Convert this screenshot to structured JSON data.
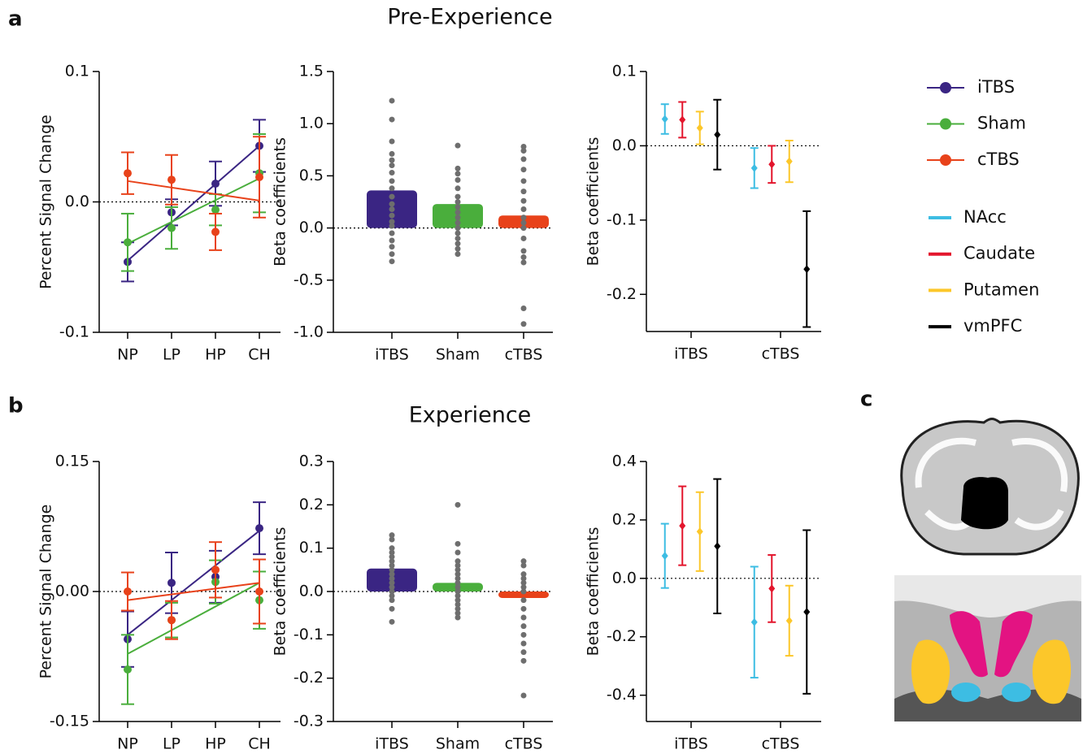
{
  "panels": [
    {
      "label": "a",
      "title": "Pre-Experience"
    },
    {
      "label": "b",
      "title": "Experience"
    },
    {
      "label": "c"
    }
  ],
  "chart_data": [
    {
      "type": "line",
      "ylabel": "Percent  Signal  Change",
      "categories": [
        "NP",
        "LP",
        "HP",
        "CH"
      ],
      "ylim": [
        -0.1,
        0.1
      ],
      "yticks": [
        -0.1,
        {
          "value": 0,
          "label": "0.0"
        },
        0.1
      ],
      "series": [
        {
          "name": "iTBS",
          "color": "#3a2583",
          "values": [
            -0.046,
            -0.008,
            0.014,
            0.043
          ],
          "errors": [
            0.015,
            0.01,
            0.017,
            0.02
          ],
          "fit": [
            -0.045,
            0.043
          ]
        },
        {
          "name": "Sham",
          "color": "#4aae3c",
          "values": [
            -0.031,
            -0.02,
            -0.006,
            0.022
          ],
          "errors": [
            0.022,
            0.016,
            0.012,
            0.03
          ],
          "fit": [
            -0.032,
            0.018
          ]
        },
        {
          "name": "cTBS",
          "color": "#e8421a",
          "values": [
            0.022,
            0.017,
            -0.023,
            0.019
          ],
          "errors": [
            0.016,
            0.019,
            0.014,
            0.031
          ],
          "fit": [
            0.016,
            0.001
          ]
        }
      ]
    },
    {
      "type": "bar",
      "ylabel": "Beta coefficients",
      "categories": [
        "iTBS",
        "Sham",
        "cTBS"
      ],
      "values": [
        0.36,
        0.23,
        0.12
      ],
      "colors": [
        "#3a2583",
        "#4aae3c",
        "#e8421a"
      ],
      "point_color": "#6e6e6e",
      "points": [
        [
          1.22,
          1.04,
          0.83,
          0.71,
          0.65,
          0.6,
          0.53,
          0.45,
          0.38,
          0.3,
          0.23,
          0.18,
          0.12,
          0.06,
          0.02,
          -0.05,
          -0.12,
          -0.18,
          -0.25,
          -0.32
        ],
        [
          0.79,
          0.57,
          0.52,
          0.46,
          0.38,
          0.3,
          0.25,
          0.2,
          0.15,
          0.1,
          0.05,
          0.0,
          -0.05,
          -0.1,
          -0.15,
          -0.2,
          -0.25
        ],
        [
          0.78,
          0.74,
          0.66,
          0.56,
          0.45,
          0.35,
          0.26,
          0.18,
          0.1,
          0.05,
          0.0,
          -0.1,
          -0.22,
          -0.28,
          -0.33,
          -0.77,
          -0.92
        ]
      ],
      "ylim": [
        -1.0,
        1.5
      ],
      "yticks": [
        {
          "value": -1,
          "label": "-1.0"
        },
        -0.5,
        {
          "value": 0,
          "label": "0.0"
        },
        0.5,
        {
          "value": 1,
          "label": "1.0"
        },
        1.5
      ]
    },
    {
      "type": "errorbar",
      "ylabel": "Beta coefficients",
      "categories": [
        "iTBS",
        "cTBS"
      ],
      "ylim": [
        -0.25,
        0.1
      ],
      "yticks": [
        -0.2,
        -0.1,
        {
          "value": 0,
          "label": "0.0"
        },
        0.1
      ],
      "series": [
        {
          "name": "NAcc",
          "color": "#3dbde3",
          "values": [
            0.036,
            -0.03
          ],
          "errors": [
            0.02,
            0.027
          ]
        },
        {
          "name": "Caudate",
          "color": "#e3162d",
          "values": [
            0.035,
            -0.025
          ],
          "errors": [
            0.024,
            0.025
          ]
        },
        {
          "name": "Putamen",
          "color": "#fcc72a",
          "values": [
            0.024,
            -0.021
          ],
          "errors": [
            0.022,
            0.028
          ]
        },
        {
          "name": "vmPFC",
          "color": "#000000",
          "values": [
            0.015,
            -0.166
          ],
          "errors": [
            0.047,
            0.078
          ]
        }
      ]
    },
    {
      "type": "line",
      "ylabel": "Percent  Signal  Change",
      "categories": [
        "NP",
        "LP",
        "HP",
        "CH"
      ],
      "ylim": [
        -0.15,
        0.15
      ],
      "yticks": [
        -0.15,
        {
          "value": 0,
          "label": "0.00"
        },
        0.15
      ],
      "series": [
        {
          "name": "iTBS",
          "color": "#3a2583",
          "values": [
            -0.055,
            0.01,
            0.017,
            0.073
          ],
          "errors": [
            0.032,
            0.035,
            0.03,
            0.03
          ],
          "fit": [
            -0.05,
            0.07
          ]
        },
        {
          "name": "Sham",
          "color": "#4aae3c",
          "values": [
            -0.09,
            -0.033,
            0.011,
            -0.01
          ],
          "errors": [
            0.04,
            0.02,
            0.025,
            0.033
          ],
          "fit": [
            -0.072,
            0.01
          ]
        },
        {
          "name": "cTBS",
          "color": "#e8421a",
          "values": [
            0.0,
            -0.033,
            0.025,
            0.0
          ],
          "errors": [
            0.022,
            0.022,
            0.032,
            0.037
          ],
          "fit": [
            -0.01,
            0.01
          ]
        }
      ]
    },
    {
      "type": "bar",
      "ylabel": "Beta coefficients",
      "categories": [
        "iTBS",
        "Sham",
        "cTBS"
      ],
      "values": [
        0.053,
        0.02,
        -0.015
      ],
      "colors": [
        "#3a2583",
        "#4aae3c",
        "#e8421a"
      ],
      "point_color": "#6e6e6e",
      "points": [
        [
          0.13,
          0.12,
          0.1,
          0.09,
          0.08,
          0.07,
          0.06,
          0.05,
          0.04,
          0.03,
          0.02,
          0.01,
          0.0,
          -0.01,
          -0.02,
          -0.04,
          -0.07
        ],
        [
          0.2,
          0.11,
          0.09,
          0.07,
          0.06,
          0.05,
          0.04,
          0.03,
          0.02,
          0.01,
          0.0,
          -0.01,
          -0.02,
          -0.03,
          -0.04,
          -0.05,
          -0.06
        ],
        [
          0.07,
          0.06,
          0.04,
          0.03,
          0.02,
          0.01,
          0.0,
          -0.02,
          -0.04,
          -0.06,
          -0.08,
          -0.1,
          -0.12,
          -0.14,
          -0.16,
          -0.24
        ]
      ],
      "ylim": [
        -0.3,
        0.3
      ],
      "yticks": [
        -0.3,
        -0.2,
        -0.1,
        {
          "value": 0,
          "label": "0.0"
        },
        0.1,
        0.2,
        0.3
      ]
    },
    {
      "type": "errorbar",
      "ylabel": "Beta coefficients",
      "categories": [
        "iTBS",
        "cTBS"
      ],
      "ylim": [
        -0.49,
        0.4
      ],
      "yticks": [
        -0.4,
        -0.2,
        {
          "value": 0,
          "label": "0.0"
        },
        0.2,
        0.4
      ],
      "series": [
        {
          "name": "NAcc",
          "color": "#3dbde3",
          "values": [
            0.077,
            -0.15
          ],
          "errors": [
            0.11,
            0.19
          ]
        },
        {
          "name": "Caudate",
          "color": "#e3162d",
          "values": [
            0.18,
            -0.035
          ],
          "errors": [
            0.135,
            0.115
          ]
        },
        {
          "name": "Putamen",
          "color": "#fcc72a",
          "values": [
            0.16,
            -0.145
          ],
          "errors": [
            0.135,
            0.12
          ]
        },
        {
          "name": "vmPFC",
          "color": "#000000",
          "values": [
            0.11,
            -0.115
          ],
          "errors": [
            0.23,
            0.28
          ]
        }
      ]
    }
  ]
}
